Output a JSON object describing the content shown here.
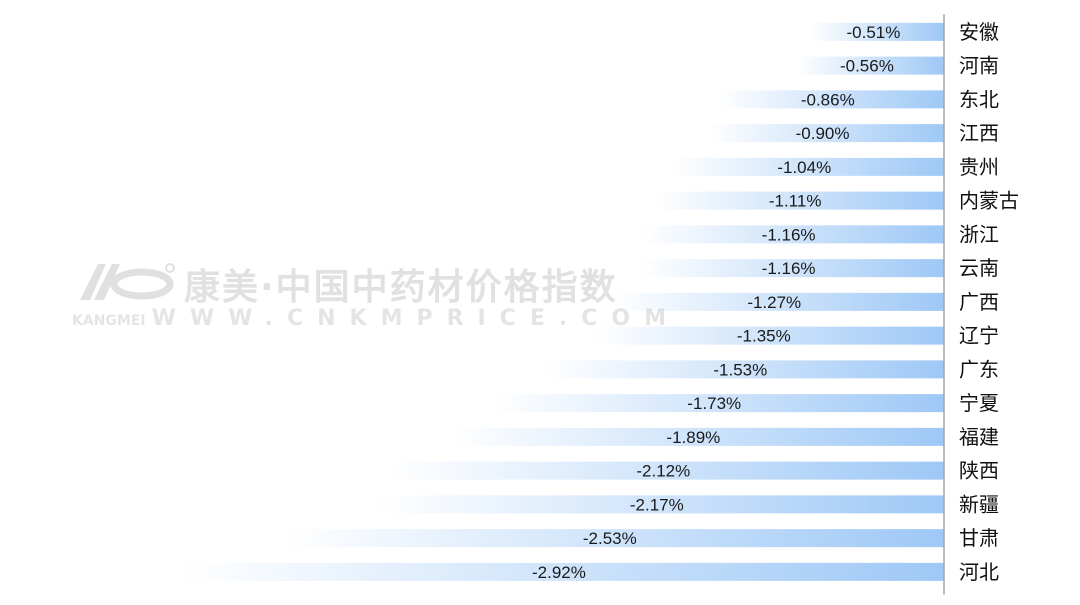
{
  "chart_data": {
    "type": "bar",
    "orientation": "horizontal",
    "categories": [
      "安徽",
      "河南",
      "东北",
      "江西",
      "贵州",
      "内蒙古",
      "浙江",
      "云南",
      "广西",
      "辽宁",
      "广东",
      "宁夏",
      "福建",
      "陕西",
      "新疆",
      "甘肃",
      "河北"
    ],
    "values": [
      -0.51,
      -0.56,
      -0.86,
      -0.9,
      -1.04,
      -1.11,
      -1.16,
      -1.16,
      -1.27,
      -1.35,
      -1.53,
      -1.73,
      -1.89,
      -2.12,
      -2.17,
      -2.53,
      -2.92
    ],
    "data_labels": [
      "-0.51%",
      "-0.56%",
      "-0.86%",
      "-0.90%",
      "-1.04%",
      "-1.11%",
      "-1.16%",
      "-1.16%",
      "-1.27%",
      "-1.35%",
      "-1.53%",
      "-1.73%",
      "-1.89%",
      "-2.12%",
      "-2.17%",
      "-2.53%",
      "-2.92%"
    ],
    "unit": "%",
    "title": "",
    "xlabel": "",
    "ylabel": "",
    "xlim": [
      -2.92,
      0
    ],
    "grid": false,
    "legend": "none",
    "bar_color": "#9ec8f6",
    "bar_style": "gradient fading to white toward the bar end",
    "axis_side": "right"
  },
  "watermark": {
    "title": "康美·中国中药材价格指数",
    "brand": "KANGMEI",
    "url": "WWW.CNKMPRICE.COM"
  }
}
